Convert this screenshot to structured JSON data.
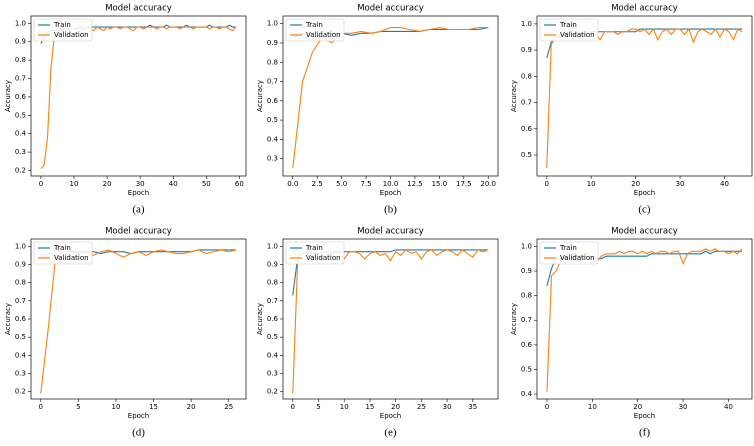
{
  "chart_data": [
    {
      "type": "line",
      "title": "Model accuracy",
      "caption": "(a)",
      "xlabel": "Epoch",
      "ylabel": "Accuracy",
      "legend": "upper left",
      "x": [
        0,
        1,
        2,
        3,
        4,
        5,
        6,
        7,
        8,
        9,
        10,
        11,
        12,
        13,
        14,
        15,
        16,
        17,
        18,
        19,
        20,
        21,
        22,
        23,
        24,
        25,
        26,
        27,
        28,
        29,
        30,
        31,
        32,
        33,
        34,
        35,
        36,
        37,
        38,
        39,
        40,
        41,
        42,
        43,
        44,
        45,
        46,
        47,
        48,
        49,
        50,
        51,
        52,
        53,
        54,
        55,
        56,
        57,
        58,
        59
      ],
      "series": [
        {
          "name": "Train",
          "color": "#1f77b4",
          "values": [
            0.89,
            0.93,
            0.95,
            0.96,
            0.96,
            0.97,
            0.97,
            0.97,
            0.97,
            0.97,
            0.97,
            0.97,
            0.98,
            0.97,
            0.98,
            0.98,
            0.98,
            0.98,
            0.98,
            0.98,
            0.98,
            0.98,
            0.98,
            0.98,
            0.98,
            0.98,
            0.98,
            0.98,
            0.98,
            0.98,
            0.98,
            0.98,
            0.98,
            0.99,
            0.98,
            0.98,
            0.98,
            0.98,
            0.99,
            0.98,
            0.98,
            0.98,
            0.98,
            0.98,
            0.99,
            0.98,
            0.98,
            0.98,
            0.98,
            0.98,
            0.98,
            0.99,
            0.98,
            0.98,
            0.98,
            0.98,
            0.98,
            0.99,
            0.98,
            0.98
          ]
        },
        {
          "name": "Validation",
          "color": "#ff7f0e",
          "values": [
            0.21,
            0.23,
            0.38,
            0.75,
            0.92,
            0.95,
            0.96,
            0.97,
            0.96,
            0.97,
            0.97,
            0.98,
            0.97,
            0.97,
            0.98,
            0.97,
            0.96,
            0.98,
            0.97,
            0.96,
            0.98,
            0.97,
            0.98,
            0.98,
            0.97,
            0.98,
            0.98,
            0.97,
            0.96,
            0.98,
            0.98,
            0.97,
            0.98,
            0.98,
            0.98,
            0.97,
            0.98,
            0.98,
            0.97,
            0.98,
            0.98,
            0.98,
            0.97,
            0.98,
            0.98,
            0.98,
            0.97,
            0.98,
            0.98,
            0.98,
            0.98,
            0.97,
            0.98,
            0.98,
            0.97,
            0.98,
            0.98,
            0.97,
            0.96,
            0.98
          ]
        }
      ],
      "xlim": [
        -3,
        62
      ],
      "ylim": [
        0.17,
        1.04
      ],
      "xticks": [
        0,
        10,
        20,
        30,
        40,
        50,
        60
      ],
      "yticks": [
        0.2,
        0.3,
        0.4,
        0.5,
        0.6,
        0.7,
        0.8,
        0.9,
        {
          "value": 1,
          "label": "1.0"
        }
      ]
    },
    {
      "type": "line",
      "title": "Model accuracy",
      "caption": "(b)",
      "xlabel": "Epoch",
      "ylabel": "Accuracy",
      "legend": "upper left",
      "x": [
        0,
        1,
        2,
        3,
        4,
        5,
        6,
        7,
        8,
        9,
        10,
        11,
        12,
        13,
        14,
        15,
        16,
        17,
        18,
        19,
        20
      ],
      "series": [
        {
          "name": "Train",
          "color": "#1f77b4",
          "values": [
            0.93,
            0.95,
            0.95,
            0.96,
            0.95,
            0.95,
            0.94,
            0.95,
            0.95,
            0.96,
            0.96,
            0.96,
            0.96,
            0.96,
            0.97,
            0.97,
            0.97,
            0.97,
            0.97,
            0.97,
            0.98
          ]
        },
        {
          "name": "Validation",
          "color": "#ff7f0e",
          "values": [
            0.25,
            0.7,
            0.85,
            0.93,
            0.9,
            0.95,
            0.95,
            0.96,
            0.95,
            0.96,
            0.98,
            0.98,
            0.97,
            0.96,
            0.97,
            0.98,
            0.97,
            0.97,
            0.97,
            0.98,
            0.98
          ]
        }
      ],
      "xlim": [
        -1,
        21
      ],
      "ylim": [
        0.21,
        1.04
      ],
      "xticks": [
        {
          "value": 0,
          "label": "0.0"
        },
        2.5,
        {
          "value": 5,
          "label": "5.0"
        },
        7.5,
        {
          "value": 10,
          "label": "10.0"
        },
        12.5,
        {
          "value": 15,
          "label": "15.0"
        },
        17.5,
        {
          "value": 20,
          "label": "20.0"
        }
      ],
      "yticks": [
        0.3,
        0.4,
        0.5,
        0.6,
        0.7,
        0.8,
        0.9,
        {
          "value": 1,
          "label": "1.0"
        }
      ]
    },
    {
      "type": "line",
      "title": "Model accuracy",
      "caption": "(c)",
      "xlabel": "Epoch",
      "ylabel": "Accuracy",
      "legend": "upper left",
      "x": [
        0,
        1,
        2,
        3,
        4,
        5,
        6,
        7,
        8,
        9,
        10,
        11,
        12,
        13,
        14,
        15,
        16,
        17,
        18,
        19,
        20,
        21,
        22,
        23,
        24,
        25,
        26,
        27,
        28,
        29,
        30,
        31,
        32,
        33,
        34,
        35,
        36,
        37,
        38,
        39,
        40,
        41,
        42,
        43,
        44
      ],
      "series": [
        {
          "name": "Train",
          "color": "#1f77b4",
          "values": [
            0.87,
            0.93,
            0.95,
            0.95,
            0.96,
            0.96,
            0.96,
            0.96,
            0.96,
            0.96,
            0.97,
            0.97,
            0.97,
            0.97,
            0.97,
            0.97,
            0.97,
            0.97,
            0.97,
            0.97,
            0.97,
            0.98,
            0.98,
            0.98,
            0.98,
            0.98,
            0.98,
            0.98,
            0.98,
            0.98,
            0.98,
            0.98,
            0.98,
            0.98,
            0.98,
            0.98,
            0.98,
            0.98,
            0.98,
            0.98,
            0.98,
            0.98,
            0.98,
            0.98,
            0.98
          ]
        },
        {
          "name": "Validation",
          "color": "#ff7f0e",
          "values": [
            0.45,
            0.92,
            0.95,
            0.96,
            0.96,
            0.97,
            0.96,
            0.97,
            0.96,
            0.97,
            0.97,
            0.96,
            0.94,
            0.97,
            0.97,
            0.97,
            0.96,
            0.97,
            0.97,
            0.98,
            0.98,
            0.97,
            0.98,
            0.96,
            0.98,
            0.94,
            0.97,
            0.98,
            0.96,
            0.98,
            0.98,
            0.96,
            0.98,
            0.93,
            0.97,
            0.98,
            0.97,
            0.96,
            0.98,
            0.95,
            0.98,
            0.97,
            0.94,
            0.98,
            0.97
          ]
        }
      ],
      "xlim": [
        -2.2,
        46.2
      ],
      "ylim": [
        0.42,
        1.03
      ],
      "xticks": [
        0,
        10,
        20,
        30,
        40
      ],
      "yticks": [
        0.5,
        0.6,
        0.7,
        0.8,
        0.9,
        {
          "value": 1,
          "label": "1.0"
        }
      ]
    },
    {
      "type": "line",
      "title": "Model accuracy",
      "caption": "(d)",
      "xlabel": "Epoch",
      "ylabel": "Accuracy",
      "legend": "upper left",
      "x": [
        0,
        1,
        2,
        3,
        4,
        5,
        6,
        7,
        8,
        9,
        10,
        11,
        12,
        13,
        14,
        15,
        16,
        17,
        18,
        19,
        20,
        21,
        22,
        23,
        24,
        25,
        26
      ],
      "series": [
        {
          "name": "Train",
          "color": "#1f77b4",
          "values": [
            0.95,
            0.96,
            0.97,
            0.97,
            0.97,
            0.97,
            0.97,
            0.97,
            0.96,
            0.97,
            0.97,
            0.97,
            0.96,
            0.97,
            0.97,
            0.97,
            0.97,
            0.97,
            0.97,
            0.97,
            0.97,
            0.98,
            0.98,
            0.98,
            0.98,
            0.98,
            0.98
          ]
        },
        {
          "name": "Validation",
          "color": "#ff7f0e",
          "values": [
            0.19,
            0.55,
            0.95,
            0.97,
            0.97,
            0.96,
            0.97,
            0.95,
            0.97,
            0.98,
            0.96,
            0.94,
            0.96,
            0.97,
            0.95,
            0.97,
            0.98,
            0.97,
            0.96,
            0.96,
            0.97,
            0.98,
            0.96,
            0.97,
            0.98,
            0.97,
            0.98
          ]
        }
      ],
      "xlim": [
        -1.3,
        27.3
      ],
      "ylim": [
        0.16,
        1.04
      ],
      "xticks": [
        0,
        5,
        10,
        15,
        20,
        25
      ],
      "yticks": [
        0.2,
        0.3,
        0.4,
        0.5,
        0.6,
        0.7,
        0.8,
        0.9,
        {
          "value": 1,
          "label": "1.0"
        }
      ]
    },
    {
      "type": "line",
      "title": "Model accuracy",
      "caption": "(e)",
      "xlabel": "Epoch",
      "ylabel": "Accuracy",
      "legend": "upper left",
      "x": [
        0,
        1,
        2,
        3,
        4,
        5,
        6,
        7,
        8,
        9,
        10,
        11,
        12,
        13,
        14,
        15,
        16,
        17,
        18,
        19,
        20,
        21,
        22,
        23,
        24,
        25,
        26,
        27,
        28,
        29,
        30,
        31,
        32,
        33,
        34,
        35,
        36,
        37,
        38
      ],
      "series": [
        {
          "name": "Train",
          "color": "#1f77b4",
          "values": [
            0.73,
            0.95,
            0.96,
            0.96,
            0.96,
            0.96,
            0.97,
            0.97,
            0.97,
            0.97,
            0.97,
            0.97,
            0.97,
            0.97,
            0.97,
            0.97,
            0.97,
            0.97,
            0.97,
            0.97,
            0.98,
            0.98,
            0.98,
            0.98,
            0.98,
            0.98,
            0.98,
            0.98,
            0.98,
            0.98,
            0.98,
            0.98,
            0.98,
            0.98,
            0.98,
            0.98,
            0.98,
            0.98,
            0.98
          ]
        },
        {
          "name": "Validation",
          "color": "#ff7f0e",
          "values": [
            0.19,
            0.95,
            0.96,
            0.97,
            0.97,
            0.96,
            0.97,
            0.97,
            0.96,
            0.97,
            0.93,
            0.97,
            0.97,
            0.96,
            0.93,
            0.96,
            0.97,
            0.95,
            0.96,
            0.92,
            0.97,
            0.95,
            0.98,
            0.96,
            0.97,
            0.93,
            0.97,
            0.98,
            0.95,
            0.97,
            0.98,
            0.97,
            0.95,
            0.98,
            0.96,
            0.94,
            0.98,
            0.97,
            0.98
          ]
        }
      ],
      "xlim": [
        -1.9,
        39.9
      ],
      "ylim": [
        0.16,
        1.04
      ],
      "xticks": [
        0,
        5,
        10,
        15,
        20,
        25,
        30,
        35
      ],
      "yticks": [
        0.2,
        0.3,
        0.4,
        0.5,
        0.6,
        0.7,
        0.8,
        0.9,
        {
          "value": 1,
          "label": "1.0"
        }
      ]
    },
    {
      "type": "line",
      "title": "Model accuracy",
      "caption": "(f)",
      "xlabel": "Epoch",
      "ylabel": "Accuracy",
      "legend": "upper left",
      "x": [
        0,
        1,
        2,
        3,
        4,
        5,
        6,
        7,
        8,
        9,
        10,
        11,
        12,
        13,
        14,
        15,
        16,
        17,
        18,
        19,
        20,
        21,
        22,
        23,
        24,
        25,
        26,
        27,
        28,
        29,
        30,
        31,
        32,
        33,
        34,
        35,
        36,
        37,
        38,
        39,
        40,
        41,
        42,
        43
      ],
      "series": [
        {
          "name": "Train",
          "color": "#1f77b4",
          "values": [
            0.84,
            0.91,
            0.95,
            0.95,
            0.95,
            0.95,
            0.96,
            0.96,
            0.96,
            0.96,
            0.95,
            0.95,
            0.95,
            0.96,
            0.96,
            0.96,
            0.96,
            0.96,
            0.96,
            0.96,
            0.96,
            0.96,
            0.96,
            0.97,
            0.97,
            0.97,
            0.97,
            0.97,
            0.97,
            0.97,
            0.97,
            0.97,
            0.97,
            0.97,
            0.97,
            0.98,
            0.97,
            0.98,
            0.98,
            0.98,
            0.98,
            0.98,
            0.98,
            0.98
          ]
        },
        {
          "name": "Validation",
          "color": "#ff7f0e",
          "values": [
            0.41,
            0.88,
            0.9,
            0.94,
            0.96,
            0.97,
            0.97,
            0.96,
            0.97,
            0.97,
            0.96,
            0.94,
            0.96,
            0.97,
            0.97,
            0.97,
            0.98,
            0.97,
            0.98,
            0.98,
            0.97,
            0.98,
            0.97,
            0.98,
            0.97,
            0.98,
            0.98,
            0.97,
            0.98,
            0.98,
            0.93,
            0.97,
            0.98,
            0.98,
            0.98,
            0.99,
            0.98,
            0.99,
            0.98,
            0.98,
            0.97,
            0.98,
            0.97,
            0.99
          ]
        }
      ],
      "xlim": [
        -2.2,
        45.2
      ],
      "ylim": [
        0.38,
        1.03
      ],
      "xticks": [
        0,
        10,
        20,
        30,
        40
      ],
      "yticks": [
        0.4,
        0.5,
        0.6,
        0.7,
        0.8,
        0.9,
        {
          "value": 1,
          "label": "1.0"
        }
      ]
    }
  ]
}
